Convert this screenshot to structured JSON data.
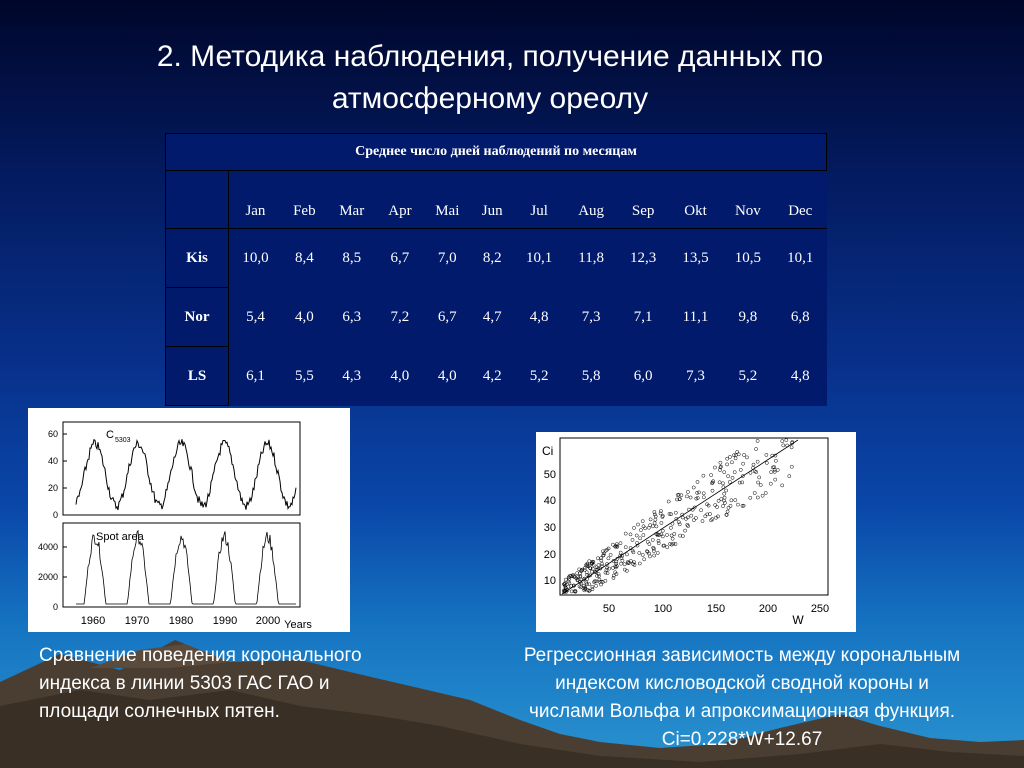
{
  "slide": {
    "title": "2. Методика наблюдения, получение данных по атмосферному ореолу"
  },
  "table": {
    "caption": "Среднее число дней наблюдений по месяцам",
    "months": [
      "Jan",
      "Feb",
      "Mar",
      "Apr",
      "Mai",
      "Jun",
      "Jul",
      "Aug",
      "Sep",
      "Okt",
      "Nov",
      "Dec"
    ],
    "rows": [
      {
        "label": "Kis",
        "values": [
          "10,0",
          "8,4",
          "8,5",
          "6,7",
          "7,0",
          "8,2",
          "10,1",
          "11,8",
          "12,3",
          "13,5",
          "10,5",
          "10,1"
        ]
      },
      {
        "label": "Nor",
        "values": [
          "5,4",
          "4,0",
          "6,3",
          "7,2",
          "6,7",
          "4,7",
          "4,8",
          "7,3",
          "7,1",
          "11,1",
          "9,8",
          "6,8"
        ]
      },
      {
        "label": "LS",
        "values": [
          "6,1",
          "5,5",
          "4,3",
          "4,0",
          "4,0",
          "4,2",
          "5,2",
          "5,8",
          "6,0",
          "7,3",
          "5,2",
          "4,8"
        ]
      }
    ]
  },
  "figure_left": {
    "panel_top_label": "C",
    "panel_top_label_sub": "5303",
    "panel_top_yticks": [
      "60",
      "40",
      "20",
      "0"
    ],
    "panel_bottom_label": "Spot area",
    "panel_bottom_yticks": [
      "4000",
      "2000",
      "0"
    ],
    "xticks": [
      "1960",
      "1970",
      "1980",
      "1990",
      "2000"
    ],
    "xlabel": "Years"
  },
  "figure_right": {
    "ylabel": "Ci",
    "xlabel": "W",
    "yticks": [
      "50",
      "40",
      "30",
      "20",
      "10"
    ],
    "xticks": [
      "50",
      "100",
      "150",
      "200",
      "250"
    ]
  },
  "captions": {
    "left": "Сравнение поведения коронального индекса в линии 5303 ГАС ГАО и площади солнечных пятен.",
    "right_line1": "Регрессионная зависимость между корональным",
    "right_line2": "индексом кисловодской сводной короны и",
    "right_line3": "числами Вольфа и апроксимационная функция.",
    "right_line4": "Ci=0.228*W+12.67"
  }
}
